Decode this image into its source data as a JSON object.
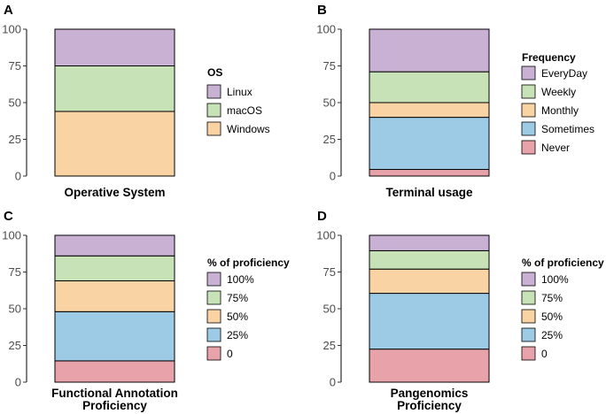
{
  "colors": {
    "purple": "#c9b1d3",
    "green": "#c8e2b8",
    "orange": "#f9d3a4",
    "blue": "#9dcae5",
    "pink": "#e8a3aa",
    "stroke": "#000000"
  },
  "chart_data": [
    {
      "type": "bar",
      "stacked": true,
      "panel": "A",
      "xlabel": "Operative System",
      "ylabel": "",
      "ylim": [
        0,
        100
      ],
      "yticks": [
        0,
        25,
        50,
        75,
        100
      ],
      "legend_title": "OS",
      "legend_position": "right",
      "segments": [
        {
          "name": "Windows",
          "value": 44,
          "color": "orange"
        },
        {
          "name": "macOS",
          "value": 31,
          "color": "green"
        },
        {
          "name": "Linux",
          "value": 25,
          "color": "purple"
        }
      ]
    },
    {
      "type": "bar",
      "stacked": true,
      "panel": "B",
      "xlabel": "Terminal usage",
      "ylabel": "",
      "ylim": [
        0,
        100
      ],
      "yticks": [
        0,
        25,
        50,
        75,
        100
      ],
      "legend_title": "Frequency",
      "legend_position": "right",
      "segments": [
        {
          "name": "Never",
          "value": 4.5,
          "color": "pink"
        },
        {
          "name": "Sometimes",
          "value": 35.5,
          "color": "blue"
        },
        {
          "name": "Monthly",
          "value": 10,
          "color": "orange"
        },
        {
          "name": "Weekly",
          "value": 21,
          "color": "green"
        },
        {
          "name": "EveryDay",
          "value": 29,
          "color": "purple"
        }
      ]
    },
    {
      "type": "bar",
      "stacked": true,
      "panel": "C",
      "xlabel": "Functional Annotation\nProficiency",
      "ylabel": "",
      "ylim": [
        0,
        100
      ],
      "yticks": [
        0,
        25,
        50,
        75,
        100
      ],
      "legend_title": "% of proficiency",
      "legend_position": "right",
      "segments": [
        {
          "name": "0",
          "value": 14.5,
          "color": "pink"
        },
        {
          "name": "25%",
          "value": 33.5,
          "color": "blue"
        },
        {
          "name": "50%",
          "value": 21,
          "color": "orange"
        },
        {
          "name": "75%",
          "value": 17,
          "color": "green"
        },
        {
          "name": "100%",
          "value": 14,
          "color": "purple"
        }
      ]
    },
    {
      "type": "bar",
      "stacked": true,
      "panel": "D",
      "xlabel": "Pangenomics\nProficiency",
      "ylabel": "",
      "ylim": [
        0,
        100
      ],
      "yticks": [
        0,
        25,
        50,
        75,
        100
      ],
      "legend_title": "% of proficiency",
      "legend_position": "right",
      "segments": [
        {
          "name": "0",
          "value": 22.5,
          "color": "pink"
        },
        {
          "name": "25%",
          "value": 38,
          "color": "blue"
        },
        {
          "name": "50%",
          "value": 16.5,
          "color": "orange"
        },
        {
          "name": "75%",
          "value": 12.5,
          "color": "green"
        },
        {
          "name": "100%",
          "value": 10.5,
          "color": "purple"
        }
      ]
    }
  ]
}
